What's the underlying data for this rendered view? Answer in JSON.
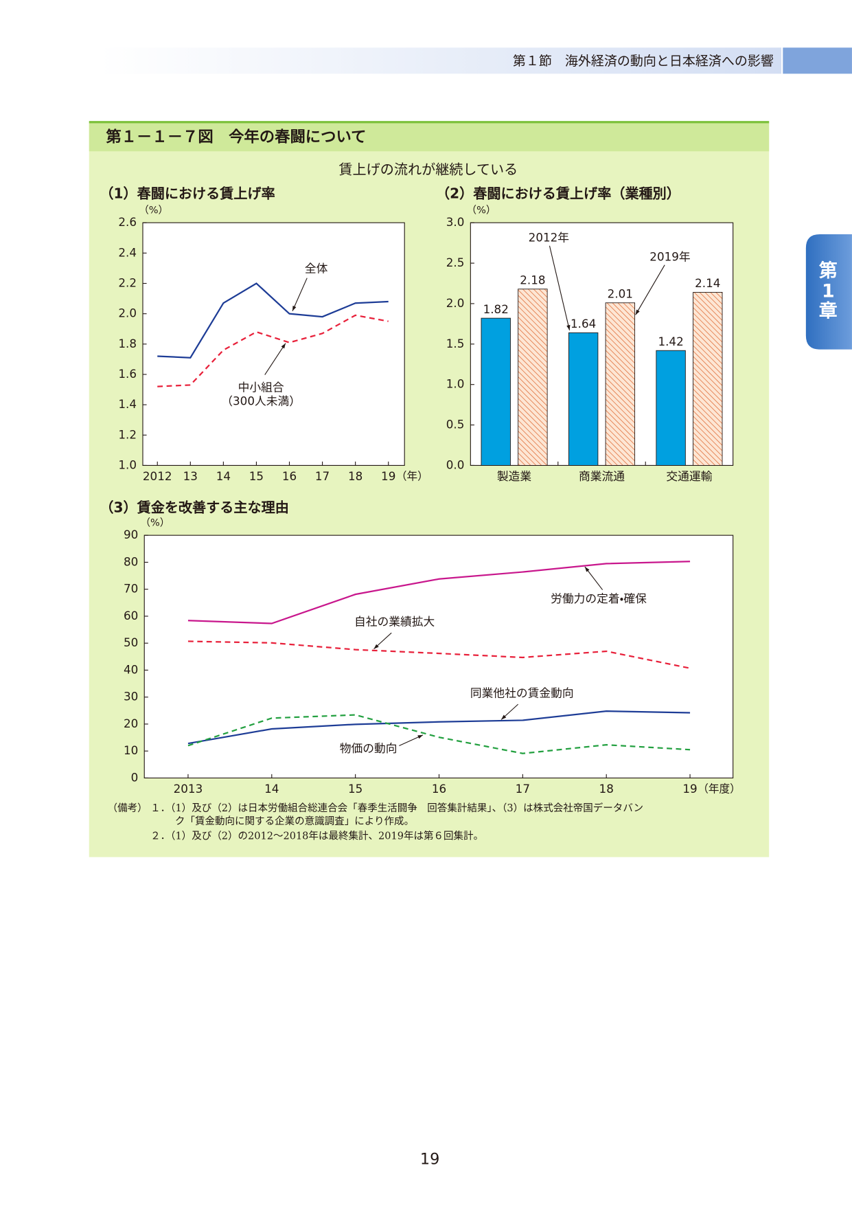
{
  "header": {
    "section": "第１節　海外経済の動向と日本経済への影響",
    "tab": [
      "第",
      "1",
      "章"
    ]
  },
  "figure": {
    "title": "第１－１－７図　今年の春闘について",
    "subtitle": "賃上げの流れが継続している"
  },
  "chart_data": [
    {
      "type": "line",
      "title": "（1）春闘における賃上げ率",
      "y_unit": "（%）",
      "x_unit": "（年）",
      "categories": [
        "2012",
        "13",
        "14",
        "15",
        "16",
        "17",
        "18",
        "19"
      ],
      "series": [
        {
          "name": "全体",
          "color": "#1d3c96",
          "dash": false,
          "values": [
            1.72,
            1.71,
            2.07,
            2.2,
            2.0,
            1.98,
            2.07,
            2.08
          ]
        },
        {
          "name": "中小組合",
          "name_sub": "（300人未満）",
          "color": "#e8203a",
          "dash": true,
          "values": [
            1.52,
            1.53,
            1.76,
            1.88,
            1.81,
            1.87,
            1.99,
            1.95
          ]
        }
      ],
      "ylim": [
        1.0,
        2.6
      ],
      "yticks": [
        {
          "value": 1.0,
          "label": "1.0"
        },
        1.2,
        1.4,
        1.6,
        1.8,
        {
          "value": 2.0,
          "label": "2.0"
        },
        2.2,
        2.4,
        2.6
      ]
    },
    {
      "type": "bar",
      "title": "（2）春闘における賃上げ率（業種別）",
      "y_unit": "（%）",
      "categories": [
        "製造業",
        "商業流通",
        "交通運輸"
      ],
      "series": [
        {
          "name": "2012年",
          "color": "#00a0e0",
          "hatch": false,
          "values": [
            1.82,
            1.64,
            1.42
          ]
        },
        {
          "name": "2019年",
          "color": "#e0703c",
          "hatch": true,
          "values": [
            2.18,
            2.01,
            2.14
          ]
        }
      ],
      "ylim": [
        0,
        3.0
      ],
      "yticks": [
        {
          "value": 0,
          "label": "0.0"
        },
        0.5,
        {
          "value": 1.0,
          "label": "1.0"
        },
        1.5,
        {
          "value": 2.0,
          "label": "2.0"
        },
        2.5,
        {
          "value": 3.0,
          "label": "3.0"
        }
      ]
    },
    {
      "type": "line",
      "title": "（3）賃金を改善する主な理由",
      "y_unit": "（%）",
      "x_unit": "（年度）",
      "categories": [
        "2013",
        "14",
        "15",
        "16",
        "17",
        "18",
        "19"
      ],
      "series": [
        {
          "name": "労働力の定着・確保",
          "color": "#c8168c",
          "dash": false,
          "values": [
            58.4,
            57.3,
            68.1,
            73.8,
            76.4,
            79.5,
            80.3
          ]
        },
        {
          "name": "自社の業績拡大",
          "color": "#e8203a",
          "dash": true,
          "values": [
            50.7,
            50.1,
            47.6,
            46.2,
            44.7,
            47.0,
            40.7
          ]
        },
        {
          "name": "同業他社の賃金動向",
          "color": "#1d3c96",
          "dash": false,
          "values": [
            12.8,
            18.2,
            19.9,
            20.8,
            21.4,
            24.8,
            24.2
          ]
        },
        {
          "name": "物価の動向",
          "color": "#23a040",
          "dash": true,
          "values": [
            12.0,
            22.2,
            23.4,
            15.1,
            9.1,
            12.3,
            10.5
          ]
        }
      ],
      "ylim": [
        0,
        90
      ],
      "yticks": [
        0,
        10,
        20,
        30,
        40,
        50,
        60,
        70,
        80,
        90
      ]
    }
  ],
  "notes": {
    "label": "（備考）",
    "lines": [
      "１．（1）及び（2）は日本労働組合総連合会「春季生活闘争　回答集計結果」、（3）は株式会社帝国データバン",
      "ク「賃金動向に関する企業の意識調査」により作成。",
      "２．（1）及び（2）の2012～2018年は最終集計、2019年は第６回集計。"
    ]
  },
  "page_number": "19"
}
